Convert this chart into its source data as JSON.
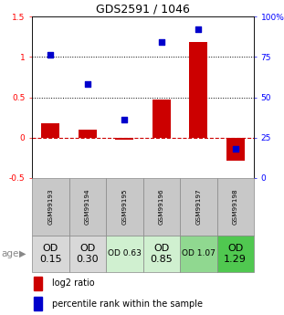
{
  "title": "GDS2591 / 1046",
  "samples": [
    "GSM99193",
    "GSM99194",
    "GSM99195",
    "GSM99196",
    "GSM99197",
    "GSM99198"
  ],
  "log2_ratio": [
    0.18,
    0.1,
    -0.02,
    0.47,
    1.18,
    -0.28
  ],
  "percentile_rank": [
    76,
    58,
    36,
    84,
    92,
    18
  ],
  "ylim_left": [
    -0.5,
    1.5
  ],
  "ylim_right": [
    0,
    100
  ],
  "age_labels": [
    "OD\n0.15",
    "OD\n0.30",
    "OD 0.63",
    "OD\n0.85",
    "OD 1.07",
    "OD\n1.29"
  ],
  "age_bg_colors": [
    "#d8d8d8",
    "#d8d8d8",
    "#d0f0d0",
    "#d0f0d0",
    "#90d890",
    "#50c850"
  ],
  "age_font_sizes": [
    8,
    8,
    6.5,
    8,
    6.5,
    8
  ],
  "bar_color": "#cc0000",
  "dot_color": "#0000cc",
  "zero_line_color": "#cc0000",
  "header_bg": "#c8c8c8",
  "bar_width": 0.5,
  "legend_red_label": "log2 ratio",
  "legend_blue_label": "percentile rank within the sample"
}
